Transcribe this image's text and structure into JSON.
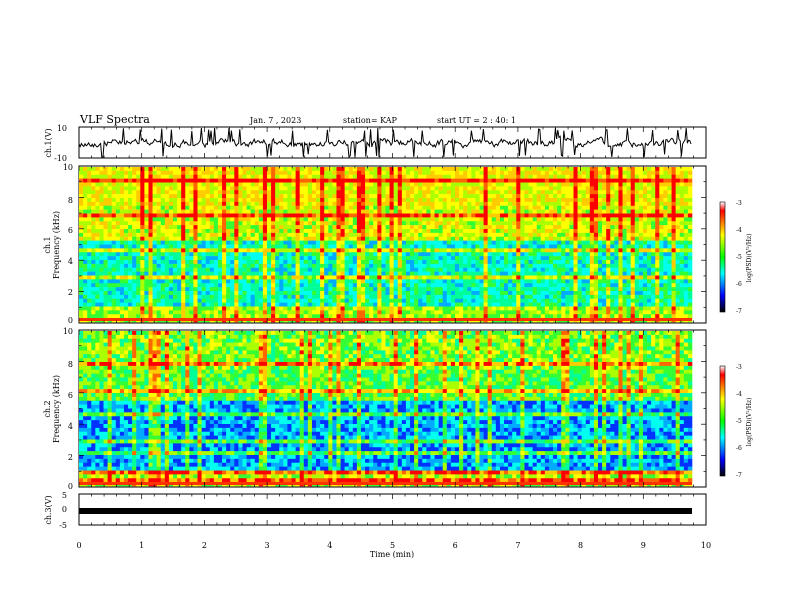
{
  "header": {
    "title": "VLF Spectra",
    "date": "Jan. 7 , 2023",
    "station": "station= KAP",
    "start": "start  UT =  2 : 40: 1"
  },
  "chart_data": [
    {
      "type": "line",
      "panel": "ch1-waveform",
      "ylabel": "ch.1(V)",
      "ylim": [
        -10,
        10
      ],
      "yticks": [
        "10",
        "-10"
      ],
      "xlim": [
        0,
        10
      ],
      "line_color": "#000000"
    },
    {
      "type": "heatmap",
      "panel": "ch1-spectrogram",
      "ylabel": "ch.1\nFrequency (kHz)",
      "ylim": [
        0,
        10
      ],
      "yticks": [
        "0",
        "2",
        "4",
        "6",
        "8",
        "10"
      ],
      "xlim": [
        0,
        10.0
      ],
      "colorbar": {
        "label": "log(PSD)(V²/Hz)",
        "range": [
          -7,
          -3
        ],
        "ticks": [
          "-3",
          "-4",
          "-5",
          "-6",
          "-7"
        ],
        "colors": [
          "#ffffff",
          "#ff0000",
          "#ffff00",
          "#00ff00",
          "#00ffff",
          "#0000ff",
          "#000000"
        ]
      }
    },
    {
      "type": "heatmap",
      "panel": "ch2-spectrogram",
      "ylabel": "ch.2\nFrequency (kHz)",
      "ylim": [
        0,
        10
      ],
      "yticks": [
        "0",
        "2",
        "4",
        "6",
        "8",
        "10"
      ],
      "xlim": [
        0,
        10.0
      ],
      "colorbar": {
        "label": "log(PSD)(V²/Hz)",
        "range": [
          -7,
          -3
        ],
        "ticks": [
          "-3",
          "-4",
          "-5",
          "-6",
          "-7"
        ]
      }
    },
    {
      "type": "line",
      "panel": "ch3-waveform",
      "ylabel": "ch.3(V)",
      "ylim": [
        -5,
        5
      ],
      "yticks": [
        "5",
        "0",
        "-5"
      ],
      "xlim": [
        0,
        10
      ],
      "value_level": -0.5,
      "line_color": "#000000"
    }
  ],
  "xaxis": {
    "label": "Time (min)",
    "ticks": [
      "0",
      "1",
      "2",
      "3",
      "4",
      "5",
      "6",
      "7",
      "8",
      "9",
      "10"
    ]
  }
}
